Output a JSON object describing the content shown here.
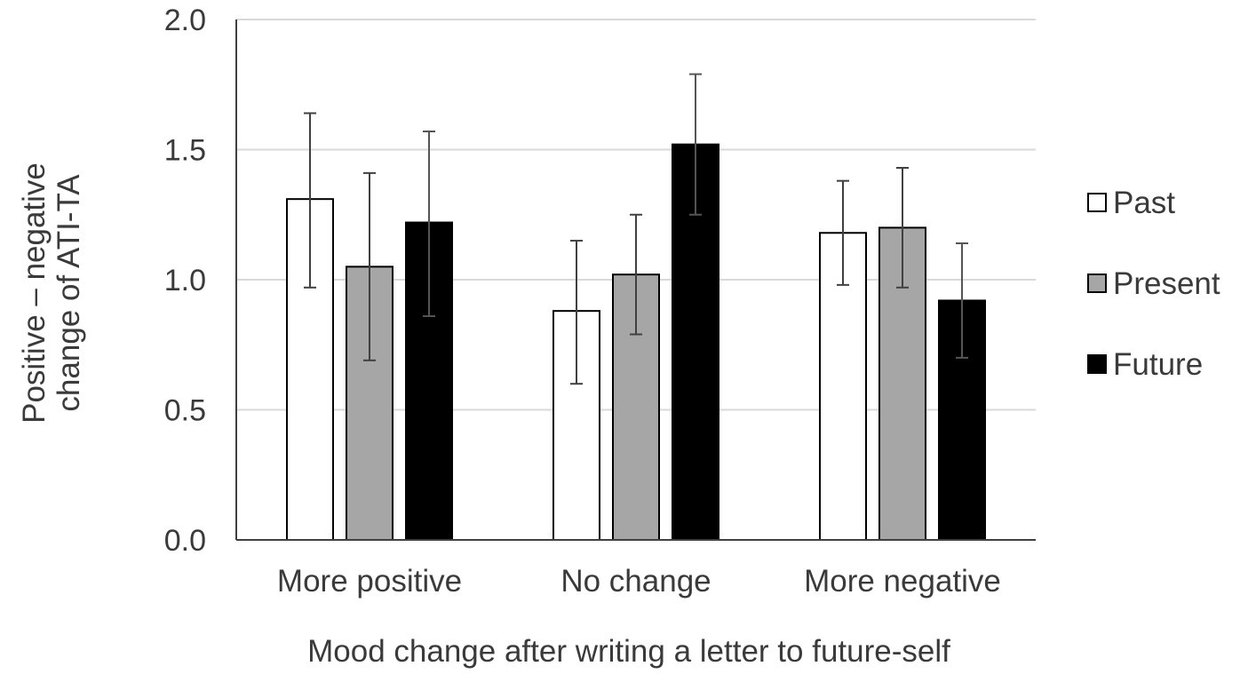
{
  "chart_data": {
    "type": "bar",
    "title": "",
    "xlabel": "Mood change after writing a letter to future-self",
    "ylabel_lines": [
      "Positive – negative",
      "change of ATI-TA"
    ],
    "categories": [
      "More positive",
      "No change",
      "More negative"
    ],
    "ylim": [
      0,
      2.0
    ],
    "yticks": [
      0.0,
      0.5,
      1.0,
      1.5,
      2.0
    ],
    "ytick_labels": [
      "0.0",
      "0.5",
      "1.0",
      "1.5",
      "2.0"
    ],
    "grid": true,
    "legend_position": "right",
    "series": [
      {
        "name": "Past",
        "color": "#ffffff",
        "values": [
          1.31,
          0.88,
          1.18
        ],
        "err_low": [
          0.97,
          0.6,
          0.98
        ],
        "err_high": [
          1.64,
          1.15,
          1.38
        ]
      },
      {
        "name": "Present",
        "color": "#a6a6a6",
        "values": [
          1.05,
          1.02,
          1.2
        ],
        "err_low": [
          0.69,
          0.79,
          0.97
        ],
        "err_high": [
          1.41,
          1.25,
          1.43
        ]
      },
      {
        "name": "Future",
        "color": "#000000",
        "values": [
          1.22,
          1.52,
          0.92
        ],
        "err_low": [
          0.86,
          1.25,
          0.7
        ],
        "err_high": [
          1.57,
          1.79,
          1.14
        ]
      }
    ],
    "colors": {
      "bar_stroke": "#000000",
      "grid": "#d9d9d9",
      "axis": "#404040",
      "error_bar": "#404040",
      "text": "#3a3a3a"
    }
  }
}
